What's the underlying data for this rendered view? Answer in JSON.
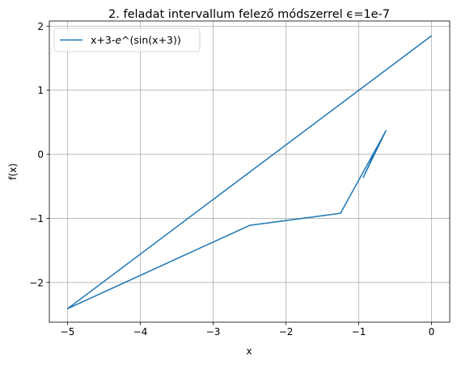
{
  "chart_data": {
    "type": "line",
    "title": "2. feladat intervallum felező módszerrel ϵ=1e-7",
    "xlabel": "x",
    "ylabel": "f(x)",
    "xlim": [
      -5.25,
      0.25
    ],
    "ylim": [
      -2.62,
      2.08
    ],
    "grid": true,
    "legend_placement": "top-left",
    "x_ticks": [
      -5,
      -4,
      -3,
      -2,
      -1,
      0
    ],
    "x_tick_labels": [
      "−5",
      "−4",
      "−3",
      "−2",
      "−1",
      "0"
    ],
    "y_ticks": [
      -2,
      -1,
      0,
      1,
      2
    ],
    "y_tick_labels": [
      "−2",
      "−1",
      "0",
      "1",
      "2"
    ],
    "series": [
      {
        "name": "x+3-e^(sin(x+3))",
        "color": "#1f77b4",
        "x": [
          0,
          -5,
          -2.5,
          -1.25,
          -0.625,
          -0.9375,
          -0.78125,
          -0.859375,
          -0.8203125,
          -0.83984375,
          -0.830078
        ],
        "y": [
          1.85,
          -2.41,
          -1.11,
          -0.92,
          0.37,
          -0.36,
          0.02,
          -0.17,
          -0.07,
          -0.12,
          -0.095
        ]
      }
    ]
  },
  "legend": {
    "label_prefix": "x+3-",
    "label_e": "e",
    "label_suffix": "^(sin(x+3))"
  },
  "colors": {
    "series": "#1f77b4",
    "grid": "#b0b0b0",
    "axes": "#000000",
    "legend_border": "#cccccc"
  }
}
